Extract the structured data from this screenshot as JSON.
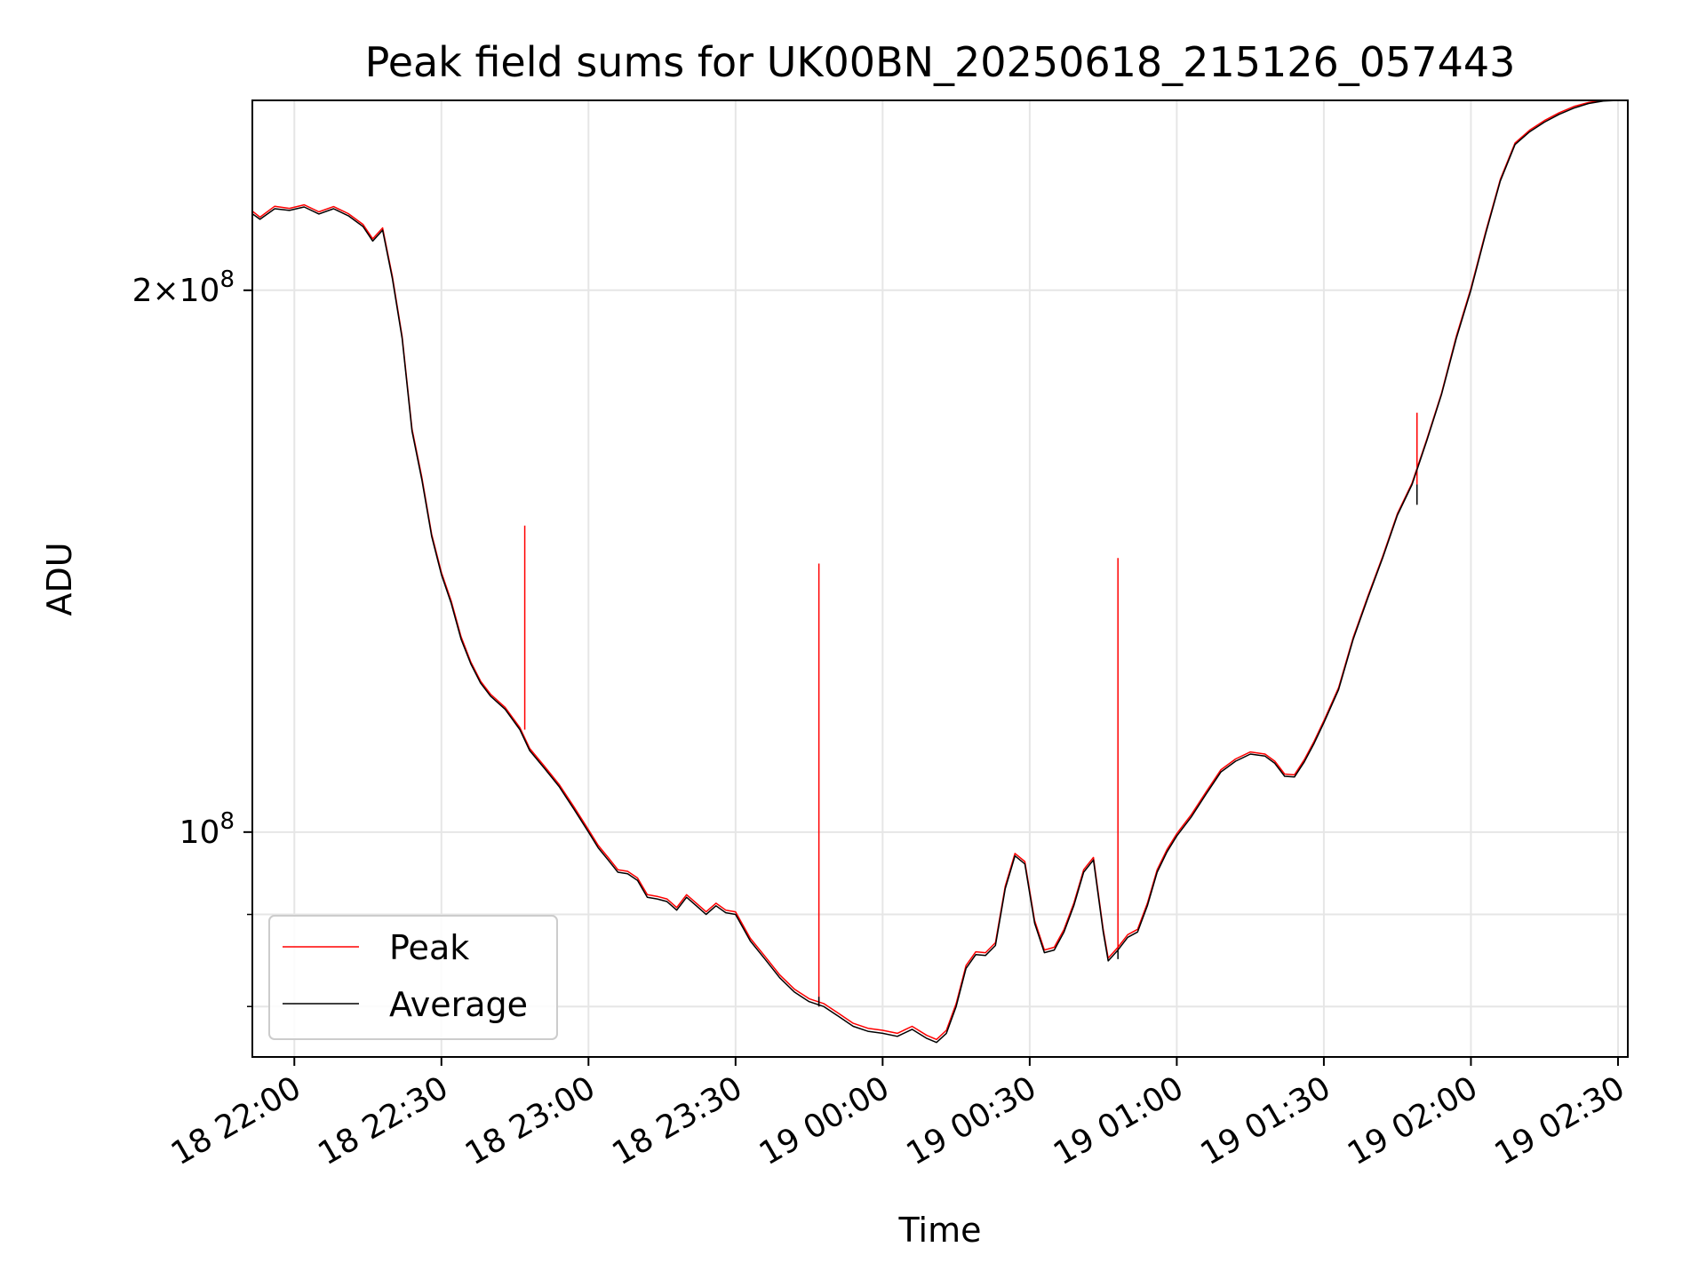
{
  "chart_data": {
    "type": "line",
    "title": "Peak field sums for UK00BN_20250618_215126_057443",
    "xlabel": "Time",
    "ylabel": "ADU",
    "y_scale": "log",
    "xlim": [
      "2025-06-18 21:51:26",
      "2025-06-19 02:32:00"
    ],
    "ylim": [
      75000000,
      255000000
    ],
    "x_ticks": [
      "2025-06-18 22:00",
      "2025-06-18 22:30",
      "2025-06-18 23:00",
      "2025-06-18 23:30",
      "2025-06-19 00:00",
      "2025-06-19 00:30",
      "2025-06-19 01:00",
      "2025-06-19 01:30",
      "2025-06-19 02:00",
      "2025-06-19 02:30"
    ],
    "x_tick_labels": [
      "18 22:00",
      "18 22:30",
      "18 23:00",
      "18 23:30",
      "19 00:00",
      "19 00:30",
      "19 01:00",
      "19 01:30",
      "19 02:00",
      "19 02:30"
    ],
    "y_ticks_major": [
      100000000,
      200000000
    ],
    "y_tick_labels": [
      "10^8",
      "2×10^8"
    ],
    "y_ticks_minor": [
      80000000,
      90000000
    ],
    "grid": true,
    "legend_position": "lower-left",
    "colors": {
      "Peak": "#ff0000",
      "Average": "#000000"
    },
    "x": [
      "2025-06-18 21:51",
      "2025-06-18 21:53",
      "2025-06-18 21:56",
      "2025-06-18 21:59",
      "2025-06-18 22:02",
      "2025-06-18 22:05",
      "2025-06-18 22:08",
      "2025-06-18 22:11",
      "2025-06-18 22:14",
      "2025-06-18 22:16",
      "2025-06-18 22:18",
      "2025-06-18 22:20",
      "2025-06-18 22:22",
      "2025-06-18 22:24",
      "2025-06-18 22:26",
      "2025-06-18 22:28",
      "2025-06-18 22:30",
      "2025-06-18 22:32",
      "2025-06-18 22:34",
      "2025-06-18 22:36",
      "2025-06-18 22:38",
      "2025-06-18 22:40",
      "2025-06-18 22:43",
      "2025-06-18 22:46",
      "2025-06-18 22:48",
      "2025-06-18 22:51",
      "2025-06-18 22:54",
      "2025-06-18 22:57",
      "2025-06-18 23:00",
      "2025-06-18 23:02",
      "2025-06-18 23:04",
      "2025-06-18 23:06",
      "2025-06-18 23:08",
      "2025-06-18 23:10",
      "2025-06-18 23:12",
      "2025-06-18 23:14",
      "2025-06-18 23:16",
      "2025-06-18 23:18",
      "2025-06-18 23:20",
      "2025-06-18 23:22",
      "2025-06-18 23:24",
      "2025-06-18 23:26",
      "2025-06-18 23:28",
      "2025-06-18 23:30",
      "2025-06-18 23:33",
      "2025-06-18 23:36",
      "2025-06-18 23:39",
      "2025-06-18 23:42",
      "2025-06-18 23:45",
      "2025-06-18 23:48",
      "2025-06-18 23:51",
      "2025-06-18 23:54",
      "2025-06-18 23:57",
      "2025-06-19 00:00",
      "2025-06-19 00:03",
      "2025-06-19 00:06",
      "2025-06-19 00:09",
      "2025-06-19 00:11",
      "2025-06-19 00:13",
      "2025-06-19 00:15",
      "2025-06-19 00:17",
      "2025-06-19 00:19",
      "2025-06-19 00:21",
      "2025-06-19 00:23",
      "2025-06-19 00:25",
      "2025-06-19 00:27",
      "2025-06-19 00:29",
      "2025-06-19 00:31",
      "2025-06-19 00:33",
      "2025-06-19 00:35",
      "2025-06-19 00:37",
      "2025-06-19 00:39",
      "2025-06-19 00:41",
      "2025-06-19 00:43",
      "2025-06-19 00:45",
      "2025-06-19 00:46",
      "2025-06-19 00:48",
      "2025-06-19 00:50",
      "2025-06-19 00:52",
      "2025-06-19 00:54",
      "2025-06-19 00:56",
      "2025-06-19 00:58",
      "2025-06-19 01:00",
      "2025-06-19 01:03",
      "2025-06-19 01:06",
      "2025-06-19 01:09",
      "2025-06-19 01:12",
      "2025-06-19 01:15",
      "2025-06-19 01:18",
      "2025-06-19 01:20",
      "2025-06-19 01:22",
      "2025-06-19 01:24",
      "2025-06-19 01:26",
      "2025-06-19 01:28",
      "2025-06-19 01:30",
      "2025-06-19 01:33",
      "2025-06-19 01:36",
      "2025-06-19 01:39",
      "2025-06-19 01:42",
      "2025-06-19 01:45",
      "2025-06-19 01:48",
      "2025-06-19 01:51",
      "2025-06-19 01:54",
      "2025-06-19 01:57",
      "2025-06-19 02:00",
      "2025-06-19 02:03",
      "2025-06-19 02:06",
      "2025-06-19 02:09",
      "2025-06-19 02:12",
      "2025-06-19 02:15",
      "2025-06-19 02:18",
      "2025-06-19 02:21",
      "2025-06-19 02:24",
      "2025-06-19 02:27",
      "2025-06-19 02:30",
      "2025-06-19 02:32"
    ],
    "series": [
      {
        "name": "Average",
        "values": [
          221000000,
          219000000,
          222000000,
          221500000,
          222500000,
          220500000,
          222000000,
          220000000,
          217000000,
          213000000,
          216000000,
          203000000,
          188000000,
          167000000,
          157000000,
          146000000,
          139000000,
          134000000,
          128000000,
          124000000,
          121000000,
          119000000,
          117000000,
          114000000,
          111000000,
          108500000,
          106000000,
          103000000,
          100000000,
          98000000,
          96500000,
          95000000,
          94800000,
          94000000,
          92000000,
          91800000,
          91500000,
          90500000,
          92000000,
          91000000,
          90000000,
          91000000,
          90200000,
          90000000,
          87000000,
          85000000,
          83000000,
          81500000,
          80500000,
          80000000,
          79000000,
          78000000,
          77500000,
          77300000,
          77000000,
          77700000,
          76800000,
          76400000,
          77300000,
          80000000,
          84000000,
          85500000,
          85400000,
          86500000,
          93000000,
          97000000,
          96000000,
          89000000,
          85700000,
          86000000,
          88000000,
          91000000,
          95000000,
          96500000,
          88000000,
          84800000,
          86000000,
          87400000,
          88000000,
          91000000,
          95000000,
          97500000,
          99500000,
          102000000,
          105000000,
          108000000,
          109500000,
          110500000,
          110200000,
          109200000,
          107400000,
          107300000,
          109400000,
          112000000,
          115000000,
          120000000,
          128000000,
          135000000,
          142000000,
          150000000,
          156000000,
          165000000,
          175000000,
          188000000,
          200000000,
          215000000,
          230000000,
          241000000,
          245000000,
          248000000,
          250500000,
          252500000,
          254000000,
          254800000,
          255000000,
          255000000
        ]
      },
      {
        "name": "Peak",
        "values": [
          221800000,
          219600000,
          222700000,
          222100000,
          223100000,
          221100000,
          222600000,
          220600000,
          217600000,
          213600000,
          216600000,
          203600000,
          188500000,
          167500000,
          157500000,
          146400000,
          139400000,
          134400000,
          128400000,
          124300000,
          121300000,
          119300000,
          117300000,
          114300000,
          111300000,
          108800000,
          106300000,
          103300000,
          100300000,
          98300000,
          96800000,
          95300000,
          95100000,
          94300000,
          92300000,
          92100000,
          91800000,
          90800000,
          92300000,
          91300000,
          90300000,
          91300000,
          90500000,
          90300000,
          87300000,
          85300000,
          83300000,
          81800000,
          80800000,
          80300000,
          79300000,
          78300000,
          77800000,
          77600000,
          77300000,
          78000000,
          77100000,
          76700000,
          77600000,
          80300000,
          84300000,
          85800000,
          85700000,
          86800000,
          93300000,
          97300000,
          96300000,
          89300000,
          86000000,
          86300000,
          88300000,
          91300000,
          95300000,
          96800000,
          88300000,
          85100000,
          86300000,
          87700000,
          88300000,
          91300000,
          95300000,
          97800000,
          99800000,
          102300000,
          105300000,
          108300000,
          109800000,
          110800000,
          110500000,
          109500000,
          107700000,
          107600000,
          109700000,
          112300000,
          115300000,
          120300000,
          128300000,
          135300000,
          142300000,
          150300000,
          156300000,
          165300000,
          175300000,
          188500000,
          200500000,
          215500000,
          230500000,
          241500000,
          245500000,
          248500000,
          251000000,
          253000000,
          254300000,
          255000000,
          255000000,
          255000000
        ]
      }
    ],
    "peak_spikes": [
      {
        "x": "2025-06-18 22:47",
        "value": 148000000
      },
      {
        "x": "2025-06-18 23:47",
        "value": 141000000
      },
      {
        "x": "2025-06-19 00:48",
        "value": 142000000
      },
      {
        "x": "2025-06-19 01:49",
        "value": 171000000
      }
    ],
    "average_dips": [
      {
        "x": "2025-06-18 23:47",
        "value": 81000000
      },
      {
        "x": "2025-06-19 00:48",
        "value": 85000000
      },
      {
        "x": "2025-06-19 01:49",
        "value": 152000000
      }
    ]
  },
  "legend": {
    "items": [
      {
        "label": "Peak",
        "color": "#ff0000"
      },
      {
        "label": "Average",
        "color": "#000000"
      }
    ]
  }
}
